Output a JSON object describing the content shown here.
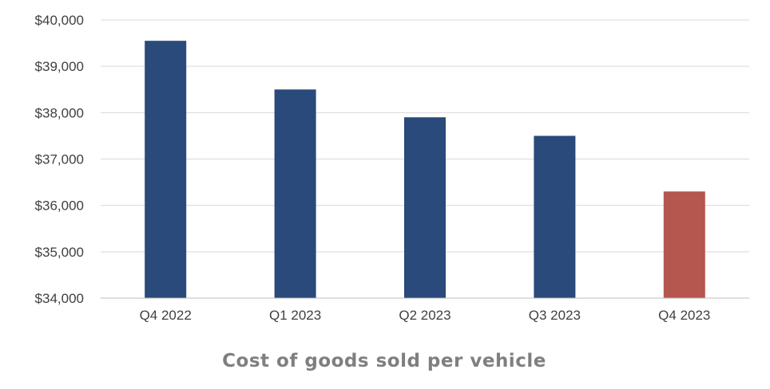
{
  "chart_data": {
    "type": "bar",
    "title": "Cost of goods sold per vehicle",
    "xlabel": "",
    "ylabel": "",
    "categories": [
      "Q4 2022",
      "Q1 2023",
      "Q2 2023",
      "Q3 2023",
      "Q4 2023"
    ],
    "values": [
      39550,
      38500,
      37900,
      37500,
      36300
    ],
    "ylim": [
      34000,
      40000
    ],
    "yticks": [
      34000,
      35000,
      36000,
      37000,
      38000,
      39000,
      40000
    ],
    "ytick_labels": [
      "$34,000",
      "$35,000",
      "$36,000",
      "$37,000",
      "$38,000",
      "$39,000",
      "$40,000"
    ],
    "grid": true,
    "legend": "none",
    "colors": {
      "bar": "#294a7a",
      "highlight_bar": "#b5564f",
      "grid": "#d9d9d9",
      "axis": "#bfbfbf",
      "tick_text": "#404040",
      "title_text": "#7f7f7f"
    },
    "highlight_index": 4
  }
}
